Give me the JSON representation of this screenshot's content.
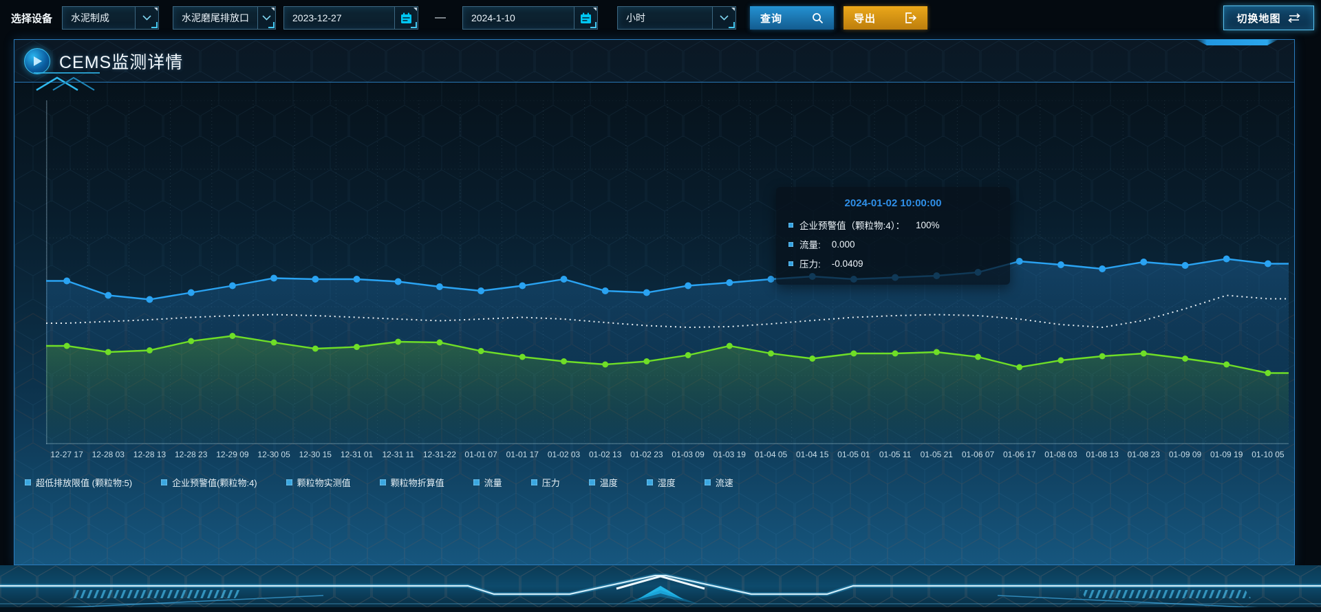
{
  "toolbar": {
    "device_label": "选择设备",
    "device_select": {
      "value": "水泥制成"
    },
    "outlet_select": {
      "value": "水泥磨尾排放口"
    },
    "date_start": "2023-12-27",
    "date_separator": "—",
    "date_end": "2024-1-10",
    "interval_select": {
      "value": "小时"
    },
    "query_button": "查询",
    "export_button": "导出",
    "switch_map_button": "切换地图"
  },
  "panel": {
    "title": "CEMS监测详情"
  },
  "tooltip": {
    "title": "2024-01-02 10:00:00",
    "items": [
      {
        "label": "企业预警值（颗粒物:4）：",
        "value": "100%"
      },
      {
        "label": "流量:",
        "value": "0.000"
      },
      {
        "label": "压力:",
        "value": "-0.0409"
      }
    ]
  },
  "legend": {
    "marker_color": "#3aa6e0",
    "items": [
      "超低排放限值 (颗粒物:5)",
      "企业预警值(颗粒物:4)",
      "颗粒物实测值",
      "颗粒物折算值",
      "流量",
      "压力",
      "温度",
      "湿度",
      "流速"
    ]
  },
  "chart_data": {
    "type": "line",
    "title": "",
    "xlabel": "",
    "ylabel": "",
    "ylim": [
      0,
      100
    ],
    "grid": true,
    "legend_position": "bottom",
    "x_labels": [
      "12-27 17",
      "12-28 03",
      "12-28 13",
      "12-28 23",
      "12-29 09",
      "12-30 05",
      "12-30 15",
      "12-31 01",
      "12-31 11",
      "12-31-22",
      "01-01 07",
      "01-01 17",
      "01-02 03",
      "01-02 13",
      "01-02 23",
      "01-03 09",
      "01-03 19",
      "01-04 05",
      "01-04 15",
      "01-05 01",
      "01-05 11",
      "01-05 21",
      "01-06 07",
      "01-06 17",
      "01-08 03",
      "01-08 13",
      "01-08 23",
      "01-09 09",
      "01-09 19",
      "01-10 05"
    ],
    "series": [
      {
        "name": "blue-line",
        "color": "#2aa3f2",
        "style": "solid",
        "markers": true,
        "marker_radius": 5,
        "area": true,
        "area_from": "rgba(38,128,198,0.32)",
        "area_to": "rgba(16,60,100,0.05)",
        "values": [
          47.5,
          43.3,
          42.1,
          44.1,
          46.1,
          48.3,
          48,
          48,
          47.3,
          45.8,
          44.6,
          46.1,
          48,
          44.6,
          44.1,
          46.1,
          47,
          48,
          48.8,
          48,
          48.5,
          49,
          50,
          53.2,
          52.2,
          51,
          53,
          52,
          53.9,
          52.5
        ]
      },
      {
        "name": "white-dotted-line",
        "color": "#e9f0f4",
        "style": "dotted",
        "markers": false,
        "marker_radius": 0,
        "area": false,
        "area_from": "rgba(0,0,0,0)",
        "area_to": "rgba(0,0,0,0)",
        "values": [
          35.2,
          35.7,
          36.2,
          36.9,
          37.4,
          37.7,
          37.4,
          36.9,
          36.4,
          35.9,
          36.4,
          36.9,
          36.4,
          35.4,
          34.5,
          34,
          34.2,
          35,
          36,
          36.9,
          37.4,
          37.7,
          37.4,
          36.4,
          34.8,
          34,
          36,
          39.4,
          43.3,
          42.3
        ]
      },
      {
        "name": "green-line",
        "color": "#6fde27",
        "style": "solid",
        "markers": true,
        "marker_radius": 4.5,
        "area": true,
        "area_from": "rgba(104,190,40,0.30)",
        "area_to": "rgba(60,120,30,0.04)",
        "values": [
          28.6,
          26.8,
          27.3,
          30,
          31.5,
          29.6,
          27.8,
          28.3,
          29.8,
          29.6,
          27.1,
          25.4,
          24.1,
          23.2,
          24.1,
          25.9,
          28.6,
          26.4,
          24.9,
          26.4,
          26.4,
          26.8,
          25.4,
          22.4,
          24.4,
          25.6,
          26.4,
          24.9,
          23.2,
          20.7
        ]
      }
    ]
  }
}
